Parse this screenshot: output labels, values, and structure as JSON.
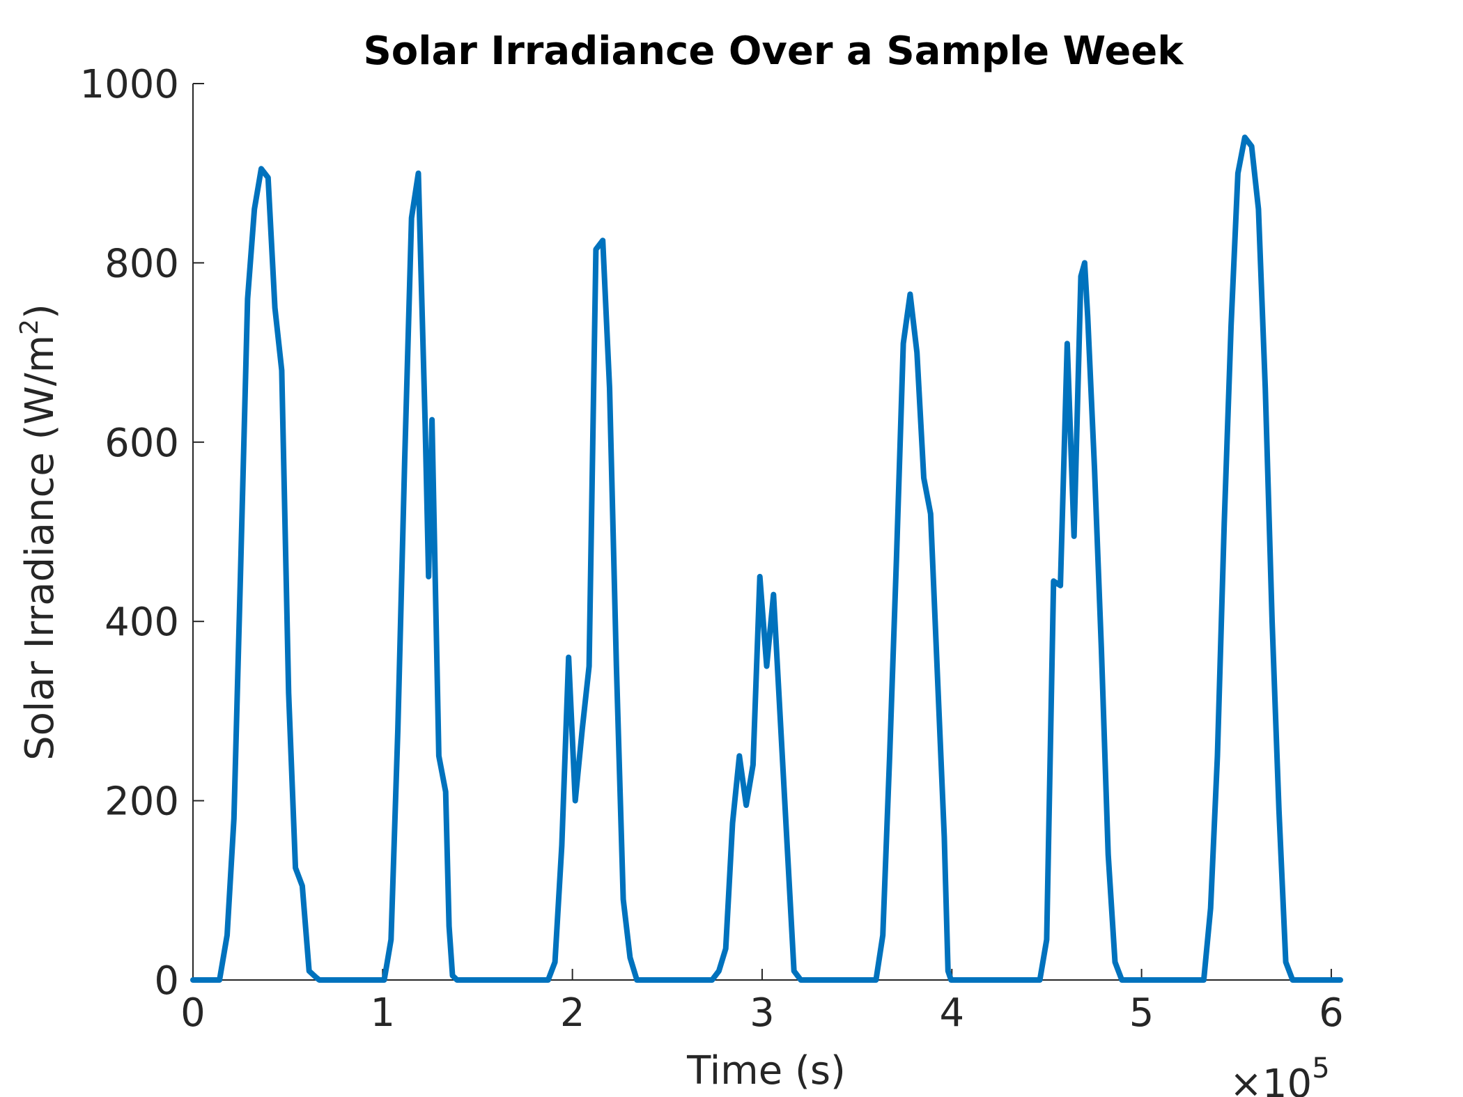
{
  "chart_data": {
    "type": "line",
    "title": "Solar Irradiance Over a Sample Week",
    "xlabel": "Time (s)",
    "ylabel_main": "Solar Irradiance (W/m",
    "ylabel_sup": "2",
    "ylabel_close": ")",
    "x_exponent_base": "×10",
    "x_exponent_power": "5",
    "x_scale": 100000,
    "xlim": [
      0,
      604800
    ],
    "ylim": [
      0,
      1000
    ],
    "x_ticks": [
      0,
      100000,
      200000,
      300000,
      400000,
      500000,
      600000
    ],
    "x_tick_labels": [
      "0",
      "1",
      "2",
      "3",
      "4",
      "5",
      "6"
    ],
    "y_ticks": [
      0,
      200,
      400,
      600,
      800,
      1000
    ],
    "y_tick_labels": [
      "0",
      "200",
      "400",
      "600",
      "800",
      "1000"
    ],
    "grid": false,
    "color": "#0072BD",
    "series": [
      {
        "x": [
          0,
          14000,
          18000,
          21600,
          25000,
          28800,
          32400,
          36000,
          39600,
          43200,
          46800,
          50400,
          54000,
          57600,
          61200,
          64800,
          66600,
          68400,
          72000,
          86400,
          100800,
          104400,
          108000,
          111600,
          115200,
          118800,
          122400,
          124200,
          126000,
          129600,
          133200,
          135000,
          136800,
          139200,
          140000,
          143600,
          147600,
          151200,
          153600,
          156000,
          172800,
          187200,
          190800,
          194400,
          198000,
          201500,
          205200,
          208800,
          212400,
          216000,
          219600,
          223200,
          226800,
          230400,
          234000,
          237600,
          241200,
          259200,
          273600,
          277200,
          280800,
          284400,
          288000,
          291600,
          295200,
          298800,
          302400,
          306000,
          309600,
          313200,
          316800,
          320400,
          324000,
          327600,
          331200,
          345600,
          360000,
          363600,
          367200,
          370800,
          374400,
          378000,
          381600,
          385200,
          388800,
          392400,
          396000,
          398000,
          399600,
          403200,
          406800,
          410400,
          414000,
          417600,
          432000,
          446400,
          450000,
          453600,
          457200,
          460800,
          464400,
          468000,
          470000,
          471600,
          475200,
          478800,
          482400,
          486000,
          489600,
          493200,
          496800,
          500400,
          504000,
          518400,
          532800,
          536400,
          540000,
          543600,
          547200,
          550800,
          554400,
          558000,
          561600,
          565200,
          568800,
          572400,
          576000,
          579600,
          583200,
          586800,
          590400,
          604800
        ],
        "values": [
          0,
          0,
          50,
          180,
          450,
          760,
          860,
          905,
          895,
          750,
          680,
          320,
          125,
          105,
          10,
          3,
          0,
          0,
          0,
          0,
          0,
          45,
          280,
          580,
          850,
          900,
          620,
          450,
          625,
          250,
          210,
          60,
          5,
          0,
          0,
          0,
          0,
          0,
          0,
          0,
          0,
          0,
          20,
          150,
          360,
          200,
          280,
          350,
          815,
          825,
          660,
          350,
          90,
          25,
          0,
          0,
          0,
          0,
          0,
          10,
          35,
          175,
          250,
          195,
          240,
          450,
          350,
          430,
          290,
          150,
          10,
          0,
          0,
          0,
          0,
          0,
          0,
          50,
          250,
          470,
          710,
          765,
          700,
          560,
          520,
          340,
          160,
          10,
          0,
          0,
          0,
          0,
          0,
          0,
          0,
          0,
          45,
          445,
          440,
          710,
          495,
          785,
          800,
          740,
          570,
          370,
          140,
          20,
          0,
          0,
          0,
          0,
          0,
          0,
          0,
          80,
          250,
          510,
          730,
          900,
          940,
          930,
          860,
          660,
          400,
          190,
          20,
          0,
          0,
          0,
          0,
          0
        ]
      }
    ]
  }
}
